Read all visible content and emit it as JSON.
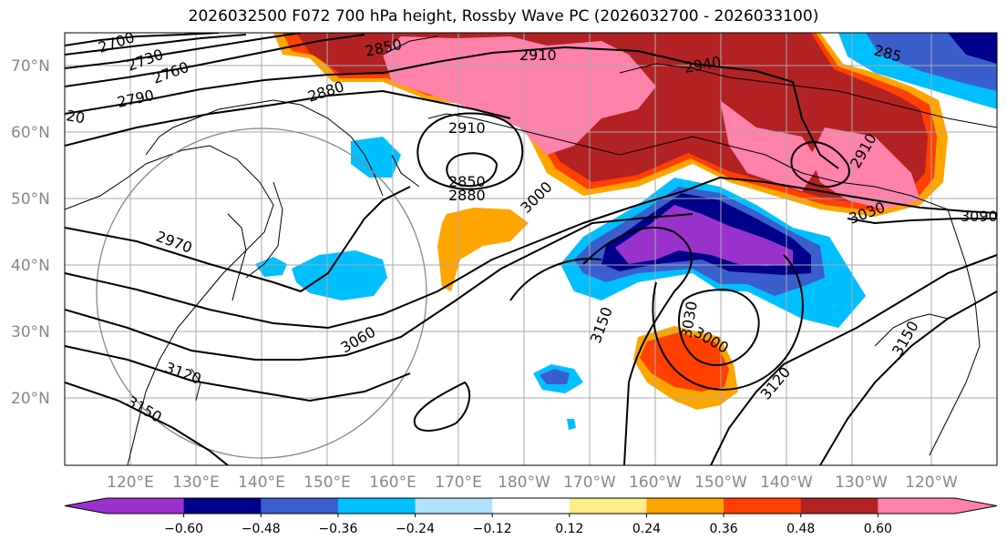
{
  "title": "2026032500 F072 700 hPa height, Rossby Wave PC (2026032700 - 2026033100)",
  "lat_labels": [
    "70°N",
    "60°N",
    "50°N",
    "40°N",
    "30°N",
    "20°N"
  ],
  "lon_labels": [
    "120°E",
    "130°E",
    "140°E",
    "150°E",
    "160°E",
    "170°E",
    "180°W",
    "170°W",
    "160°W",
    "150°W",
    "140°W",
    "130°W",
    "120°W"
  ],
  "contour_labels": [
    "2700",
    "2730",
    "2760",
    "2790",
    "20",
    "2850",
    "2880",
    "2910",
    "2940",
    "2910",
    "2850",
    "2880",
    "3000",
    "2970",
    "3060",
    "3120",
    "3150",
    "3150",
    "3030",
    "3000",
    "3120",
    "3150",
    "3030",
    "3090",
    "2910",
    "285"
  ],
  "colorbar": {
    "colors": [
      "#9932cc",
      "#00008b",
      "#3a5fcd",
      "#00bfff",
      "#b0e2ff",
      "#ffffff",
      "#ffec8b",
      "#ffa500",
      "#ff4000",
      "#b22222",
      "#ff82ab"
    ],
    "tick_labels": [
      "−0.60",
      "−0.48",
      "−0.36",
      "−0.24",
      "−0.12",
      "0.12",
      "0.24",
      "0.36",
      "0.48",
      "0.60"
    ]
  }
}
